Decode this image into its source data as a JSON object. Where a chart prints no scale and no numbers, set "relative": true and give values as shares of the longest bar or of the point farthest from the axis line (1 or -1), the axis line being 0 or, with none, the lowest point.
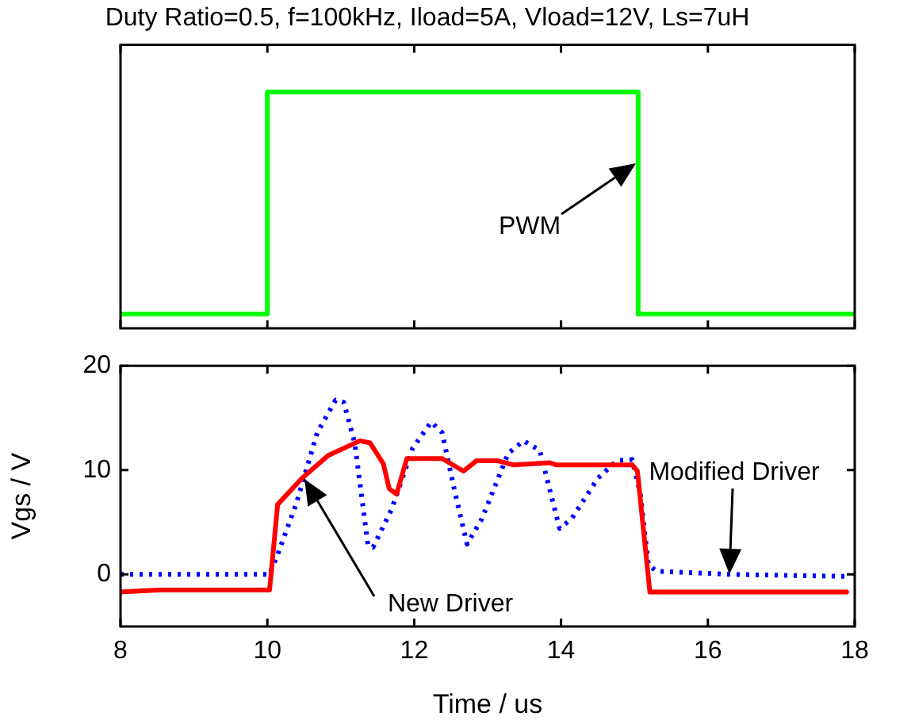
{
  "chart_data": [
    {
      "type": "line",
      "title": "Duty Ratio=0.5, f=100kHz, Iload=5A, Vload=12V, Ls=7uH",
      "relative": true,
      "xlim": [
        8,
        18
      ],
      "xticks": [
        8,
        10,
        12,
        14,
        16,
        18
      ],
      "tick_labels": false,
      "grid": false,
      "legend": false,
      "marker": "none",
      "series": [
        {
          "color": "#00ff00",
          "line_style": "solid",
          "x": [
            8,
            10,
            10,
            15.05,
            15.05,
            18
          ],
          "values": [
            0.06,
            0.06,
            1,
            1,
            0.06,
            0.06
          ]
        }
      ],
      "annotations": [
        "PWM"
      ]
    },
    {
      "type": "line",
      "xlabel": "Time / us",
      "ylabel": "Vgs / V",
      "xlim": [
        8,
        18
      ],
      "xticks": [
        8,
        10,
        12,
        14,
        16,
        18
      ],
      "ylim": [
        -5,
        20
      ],
      "yticks": [
        0,
        10,
        20
      ],
      "grid": false,
      "legend": false,
      "marker": "none",
      "series": [
        {
          "color": "#ff0000",
          "line_style": "solid",
          "x": [
            8,
            8.52,
            10.03,
            10.14,
            10.47,
            10.83,
            11.26,
            11.4,
            11.58,
            11.66,
            11.76,
            11.9,
            12.38,
            12.67,
            12.85,
            13.13,
            13.35,
            13.85,
            13.93,
            14.97,
            15.04,
            15.21,
            17.89
          ],
          "values": [
            -1.7,
            -1.5,
            -1.5,
            6.7,
            9.2,
            11.4,
            12.8,
            12.6,
            10.6,
            8.2,
            7.7,
            11.1,
            11.1,
            9.9,
            10.9,
            10.9,
            10.5,
            10.7,
            10.5,
            10.5,
            9.9,
            -1.7,
            -1.7
          ]
        },
        {
          "color": "#0000ff",
          "line_style": "dotted",
          "x": [
            8,
            10.03,
            10.14,
            10.39,
            10.68,
            10.93,
            11.04,
            11.19,
            11.37,
            11.44,
            11.69,
            11.98,
            12.23,
            12.38,
            12.56,
            12.72,
            12.92,
            13.28,
            13.49,
            13.71,
            13.98,
            14.14,
            14.5,
            14.76,
            14.97,
            15.08,
            15.19,
            15.3,
            16.3,
            17.89
          ],
          "values": [
            0,
            0,
            1.9,
            6.7,
            13.6,
            16.7,
            16.5,
            12.6,
            2.8,
            2.6,
            6.2,
            12.1,
            14.6,
            13.6,
            7.7,
            2.9,
            5.3,
            11.6,
            12.8,
            11.9,
            4.4,
            5.3,
            9.2,
            10.9,
            11,
            7.7,
            0.9,
            0.3,
            0,
            -0.2
          ]
        }
      ],
      "annotations": [
        "New Driver",
        "Modified Driver"
      ]
    }
  ]
}
